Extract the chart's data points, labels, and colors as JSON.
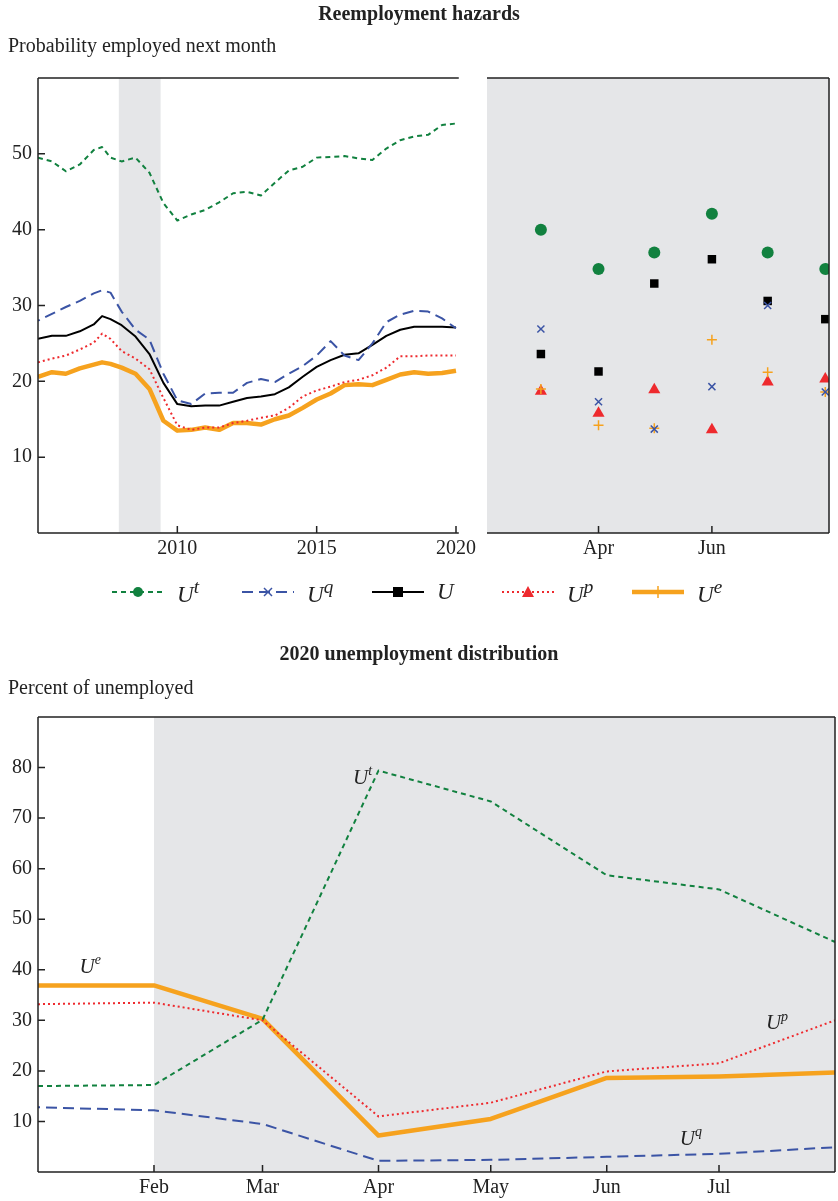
{
  "chart_data": [
    {
      "type": "line",
      "title": "Reemployment hazards",
      "ylabel": "Probability employed next month",
      "legend": "bottom",
      "grid": false,
      "x": [
        2005,
        2005.5,
        2006,
        2006.5,
        2007,
        2007.3,
        2007.6,
        2008,
        2008.5,
        2009,
        2009.5,
        2010,
        2010.5,
        2011,
        2011.5,
        2012,
        2012.5,
        2013,
        2013.5,
        2014,
        2014.5,
        2015,
        2015.5,
        2016,
        2016.5,
        2017,
        2017.5,
        2018,
        2018.5,
        2019,
        2019.5,
        2020
      ],
      "xlim": [
        2005,
        2020.1
      ],
      "xticks": [
        2010,
        2015,
        2020
      ],
      "ylim": [
        0,
        60
      ],
      "yticks": [
        10,
        20,
        30,
        40,
        50
      ],
      "bands": [
        {
          "axis": "x",
          "from": 2007.9,
          "to": 2009.4,
          "color": "#e5e6e8"
        }
      ],
      "series": [
        {
          "name": "U$^{t}$",
          "color": "#11813f",
          "line_style": "dashed",
          "values": [
            49.5,
            49.0,
            47.7,
            48.6,
            50.5,
            50.9,
            49.5,
            49.0,
            49.5,
            47.5,
            43.5,
            41.2,
            42.0,
            42.6,
            43.6,
            44.8,
            45.0,
            44.5,
            46.2,
            47.8,
            48.3,
            49.5,
            49.6,
            49.7,
            49.4,
            49.2,
            50.7,
            51.8,
            52.3,
            52.5,
            53.8,
            54.0
          ]
        },
        {
          "name": "U$^{q}$",
          "color": "#3b54a5",
          "line_style": "dashed",
          "values": [
            28.0,
            28.9,
            29.8,
            30.6,
            31.6,
            32.0,
            31.7,
            29.2,
            26.8,
            25.5,
            21.0,
            17.5,
            17.0,
            18.4,
            18.5,
            18.5,
            19.8,
            20.3,
            19.9,
            21.0,
            22.0,
            23.4,
            25.3,
            23.4,
            22.8,
            25.0,
            27.8,
            28.8,
            29.3,
            29.2,
            28.3,
            27.0
          ]
        },
        {
          "name": "U",
          "color": "#000000",
          "line_style": "solid",
          "values": [
            25.6,
            26.0,
            26.0,
            26.6,
            27.5,
            28.6,
            28.2,
            27.4,
            25.9,
            23.6,
            19.8,
            17.0,
            16.7,
            16.8,
            16.8,
            17.3,
            17.8,
            18.0,
            18.3,
            19.2,
            20.6,
            21.9,
            22.8,
            23.5,
            23.7,
            24.8,
            26.0,
            26.8,
            27.2,
            27.2,
            27.2,
            27.1
          ]
        },
        {
          "name": "U$^{p}$",
          "color": "#ee2a2e",
          "line_style": "dotted",
          "values": [
            22.5,
            23.0,
            23.4,
            24.2,
            25.1,
            26.3,
            25.6,
            24.0,
            23.0,
            21.6,
            17.8,
            14.2,
            13.6,
            13.9,
            13.9,
            14.5,
            14.8,
            15.2,
            15.5,
            16.5,
            18.0,
            18.8,
            19.3,
            19.9,
            20.2,
            20.8,
            21.8,
            23.3,
            23.3,
            23.4,
            23.4,
            23.4
          ]
        },
        {
          "name": "U$^{e}$",
          "color": "#f6a21e",
          "line_style": "solid",
          "values": [
            20.6,
            21.2,
            21.0,
            21.7,
            22.2,
            22.5,
            22.3,
            21.8,
            21.0,
            19.0,
            14.8,
            13.5,
            13.6,
            13.9,
            13.6,
            14.5,
            14.5,
            14.3,
            15.0,
            15.5,
            16.5,
            17.6,
            18.4,
            19.5,
            19.6,
            19.5,
            20.2,
            20.9,
            21.2,
            21.0,
            21.1,
            21.4
          ]
        }
      ]
    },
    {
      "type": "scatter",
      "grid": false,
      "tick_labels": "x",
      "x": [
        "2020-03",
        "2020-04",
        "2020-05",
        "2020-06",
        "2020-07",
        "2020-08"
      ],
      "xlim": [
        "2020-02",
        "2020-08-03"
      ],
      "xticks": [
        {
          "value": "2020-04",
          "label": "Apr"
        },
        {
          "value": "2020-06",
          "label": "Jun"
        }
      ],
      "ylim": [
        0,
        60
      ],
      "bands": [
        {
          "axis": "x",
          "from": "2020-02",
          "to": "2020-08-03",
          "color": "#e5e6e8"
        }
      ],
      "series": [
        {
          "color": "#11813f",
          "marker": "circle",
          "values": [
            40.0,
            34.8,
            37.0,
            42.1,
            37.0,
            34.8
          ]
        },
        {
          "color": "#3b54a5",
          "marker": "cross",
          "values": [
            26.9,
            17.3,
            13.7,
            19.3,
            30.0,
            18.6
          ]
        },
        {
          "color": "#000000",
          "marker": "square",
          "values": [
            23.6,
            21.3,
            32.9,
            36.1,
            30.6,
            28.2
          ]
        },
        {
          "color": "#ee2a2e",
          "marker": "triangle",
          "values": [
            18.7,
            15.8,
            18.9,
            13.6,
            19.9,
            20.3
          ]
        },
        {
          "color": "#f6a21e",
          "marker": "cross",
          "values": [
            19.0,
            14.2,
            13.8,
            25.5,
            21.2,
            18.6
          ]
        }
      ]
    },
    {
      "type": "line",
      "title": "2020 unemployment distribution",
      "ylabel": "Percent of unemployed",
      "grid": false,
      "x": [
        "2020-01",
        "2020-02",
        "2020-03",
        "2020-04",
        "2020-05",
        "2020-06",
        "2020-07",
        "2020-08"
      ],
      "xlim": [
        "2020-01",
        "2020-08"
      ],
      "xticks": [
        {
          "value": "2020-02",
          "label": "Feb"
        },
        {
          "value": "2020-03",
          "label": "Mar"
        },
        {
          "value": "2020-04",
          "label": "Apr"
        },
        {
          "value": "2020-05",
          "label": "May"
        },
        {
          "value": "2020-06",
          "label": "Jun"
        },
        {
          "value": "2020-07",
          "label": "Jul"
        }
      ],
      "ylim": [
        0,
        90
      ],
      "yticks": [
        10,
        20,
        30,
        40,
        50,
        60,
        70,
        80
      ],
      "bands": [
        {
          "axis": "x",
          "from": "2020-02",
          "to": "2020-08",
          "color": "#e5e6e8"
        }
      ],
      "series": [
        {
          "name": "U$^{t}$",
          "color": "#11813f",
          "line_style": "dashed",
          "values": [
            17.0,
            17.2,
            30.1,
            79.4,
            73.3,
            58.7,
            55.9,
            45.5
          ]
        },
        {
          "name": "U$^{q}$",
          "color": "#3b54a5",
          "line_style": "dashed",
          "values": [
            12.8,
            12.2,
            9.5,
            2.2,
            2.4,
            3.0,
            3.6,
            4.9
          ]
        },
        {
          "name": "U$^{p}$",
          "color": "#ee2a2e",
          "line_style": "dotted",
          "values": [
            33.2,
            33.5,
            30.0,
            11.0,
            13.7,
            19.9,
            21.5,
            30.0
          ]
        },
        {
          "name": "U$^{e}$",
          "color": "#f6a21e",
          "line_style": "solid",
          "values": [
            36.9,
            36.9,
            30.3,
            7.2,
            10.5,
            18.6,
            18.9,
            19.7
          ]
        }
      ]
    }
  ]
}
